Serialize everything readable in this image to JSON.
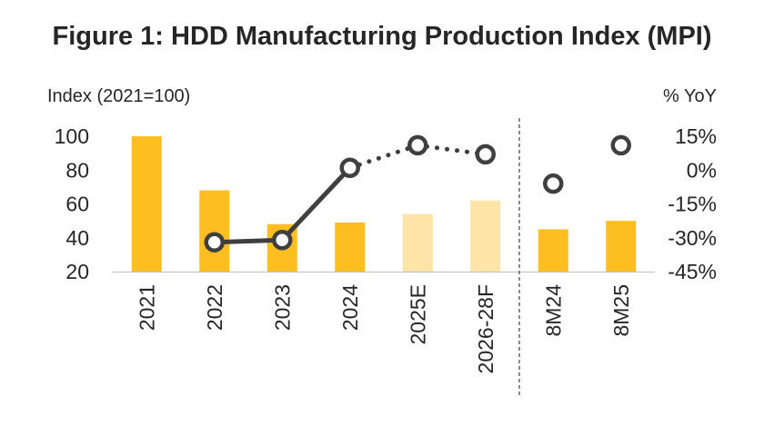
{
  "chart_data": {
    "type": "bar",
    "title": "Figure 1: HDD Manufacturing Production Index (MPI)",
    "ylabel": "Index (2021=100)",
    "y2label": "% YoY",
    "categories": [
      "2021",
      "2022",
      "2023",
      "2024",
      "2025E",
      "2026-28F",
      "8M24",
      "8M25"
    ],
    "ylim": [
      20,
      100
    ],
    "yticks": [
      20,
      40,
      60,
      80,
      100
    ],
    "y2lim": [
      -45,
      15
    ],
    "y2ticks": [
      "-45%",
      "-30%",
      "-15%",
      "0%",
      "15%"
    ],
    "y2tick_values": [
      -45,
      -30,
      -15,
      0,
      15
    ],
    "bars": [
      100,
      68,
      48,
      49,
      54,
      62,
      45,
      50
    ],
    "bar_kinds": [
      "actual",
      "actual",
      "actual",
      "actual",
      "estimate",
      "estimate",
      "actual",
      "actual"
    ],
    "yoy": [
      null,
      -32,
      -31,
      1,
      11,
      7,
      -6,
      11
    ],
    "yoy_segments": [
      {
        "from": 1,
        "to": 3,
        "style": "solid"
      },
      {
        "from": 3,
        "to": 5,
        "style": "dotted"
      }
    ],
    "divider_after_index": 5,
    "colors": {
      "actual": "#FDBE22",
      "estimate": "#FEE4A6",
      "line": "#3F3F3F",
      "marker_fill": "#FFFFFF",
      "axis": "#262626",
      "divider": "#404040"
    },
    "grid": false,
    "legend": "none"
  }
}
